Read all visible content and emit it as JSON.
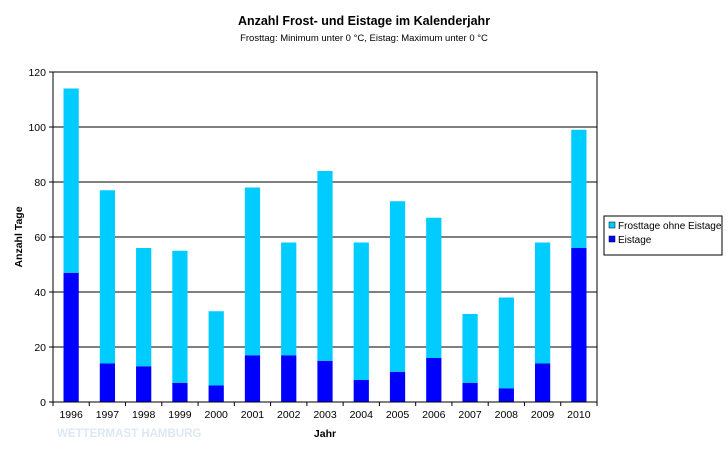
{
  "chart_data": {
    "type": "bar",
    "stacked": true,
    "title": "Anzahl Frost- und Eistage im Kalenderjahr",
    "subtitle": "Frosttag: Minimum unter 0 °C, Eistag: Maximum unter 0 °C",
    "xlabel": "Jahr",
    "ylabel": "Anzahl Tage",
    "ylim": [
      0,
      120
    ],
    "yticks": [
      0,
      20,
      40,
      60,
      80,
      100,
      120
    ],
    "grid": true,
    "legend_position": "right",
    "categories": [
      "1996",
      "1997",
      "1998",
      "1999",
      "2000",
      "2001",
      "2002",
      "2003",
      "2004",
      "2005",
      "2006",
      "2007",
      "2008",
      "2009",
      "2010"
    ],
    "series": [
      {
        "name": "Eistage",
        "color": "#0000ff",
        "values": [
          47,
          14,
          13,
          7,
          6,
          17,
          17,
          15,
          8,
          11,
          16,
          7,
          5,
          14,
          56
        ]
      },
      {
        "name": "Frosttage ohne Eistage",
        "color": "#00ccff",
        "values": [
          67,
          63,
          43,
          48,
          27,
          61,
          41,
          69,
          50,
          62,
          51,
          25,
          33,
          44,
          43
        ]
      }
    ],
    "legend_order": [
      "Frosttage ohne Eistage",
      "Eistage"
    ],
    "watermark": "WETTERMAST HAMBURG",
    "watermark_color": "#dce9f5",
    "gridline_color": "#000000",
    "axis_color": "#000000"
  }
}
